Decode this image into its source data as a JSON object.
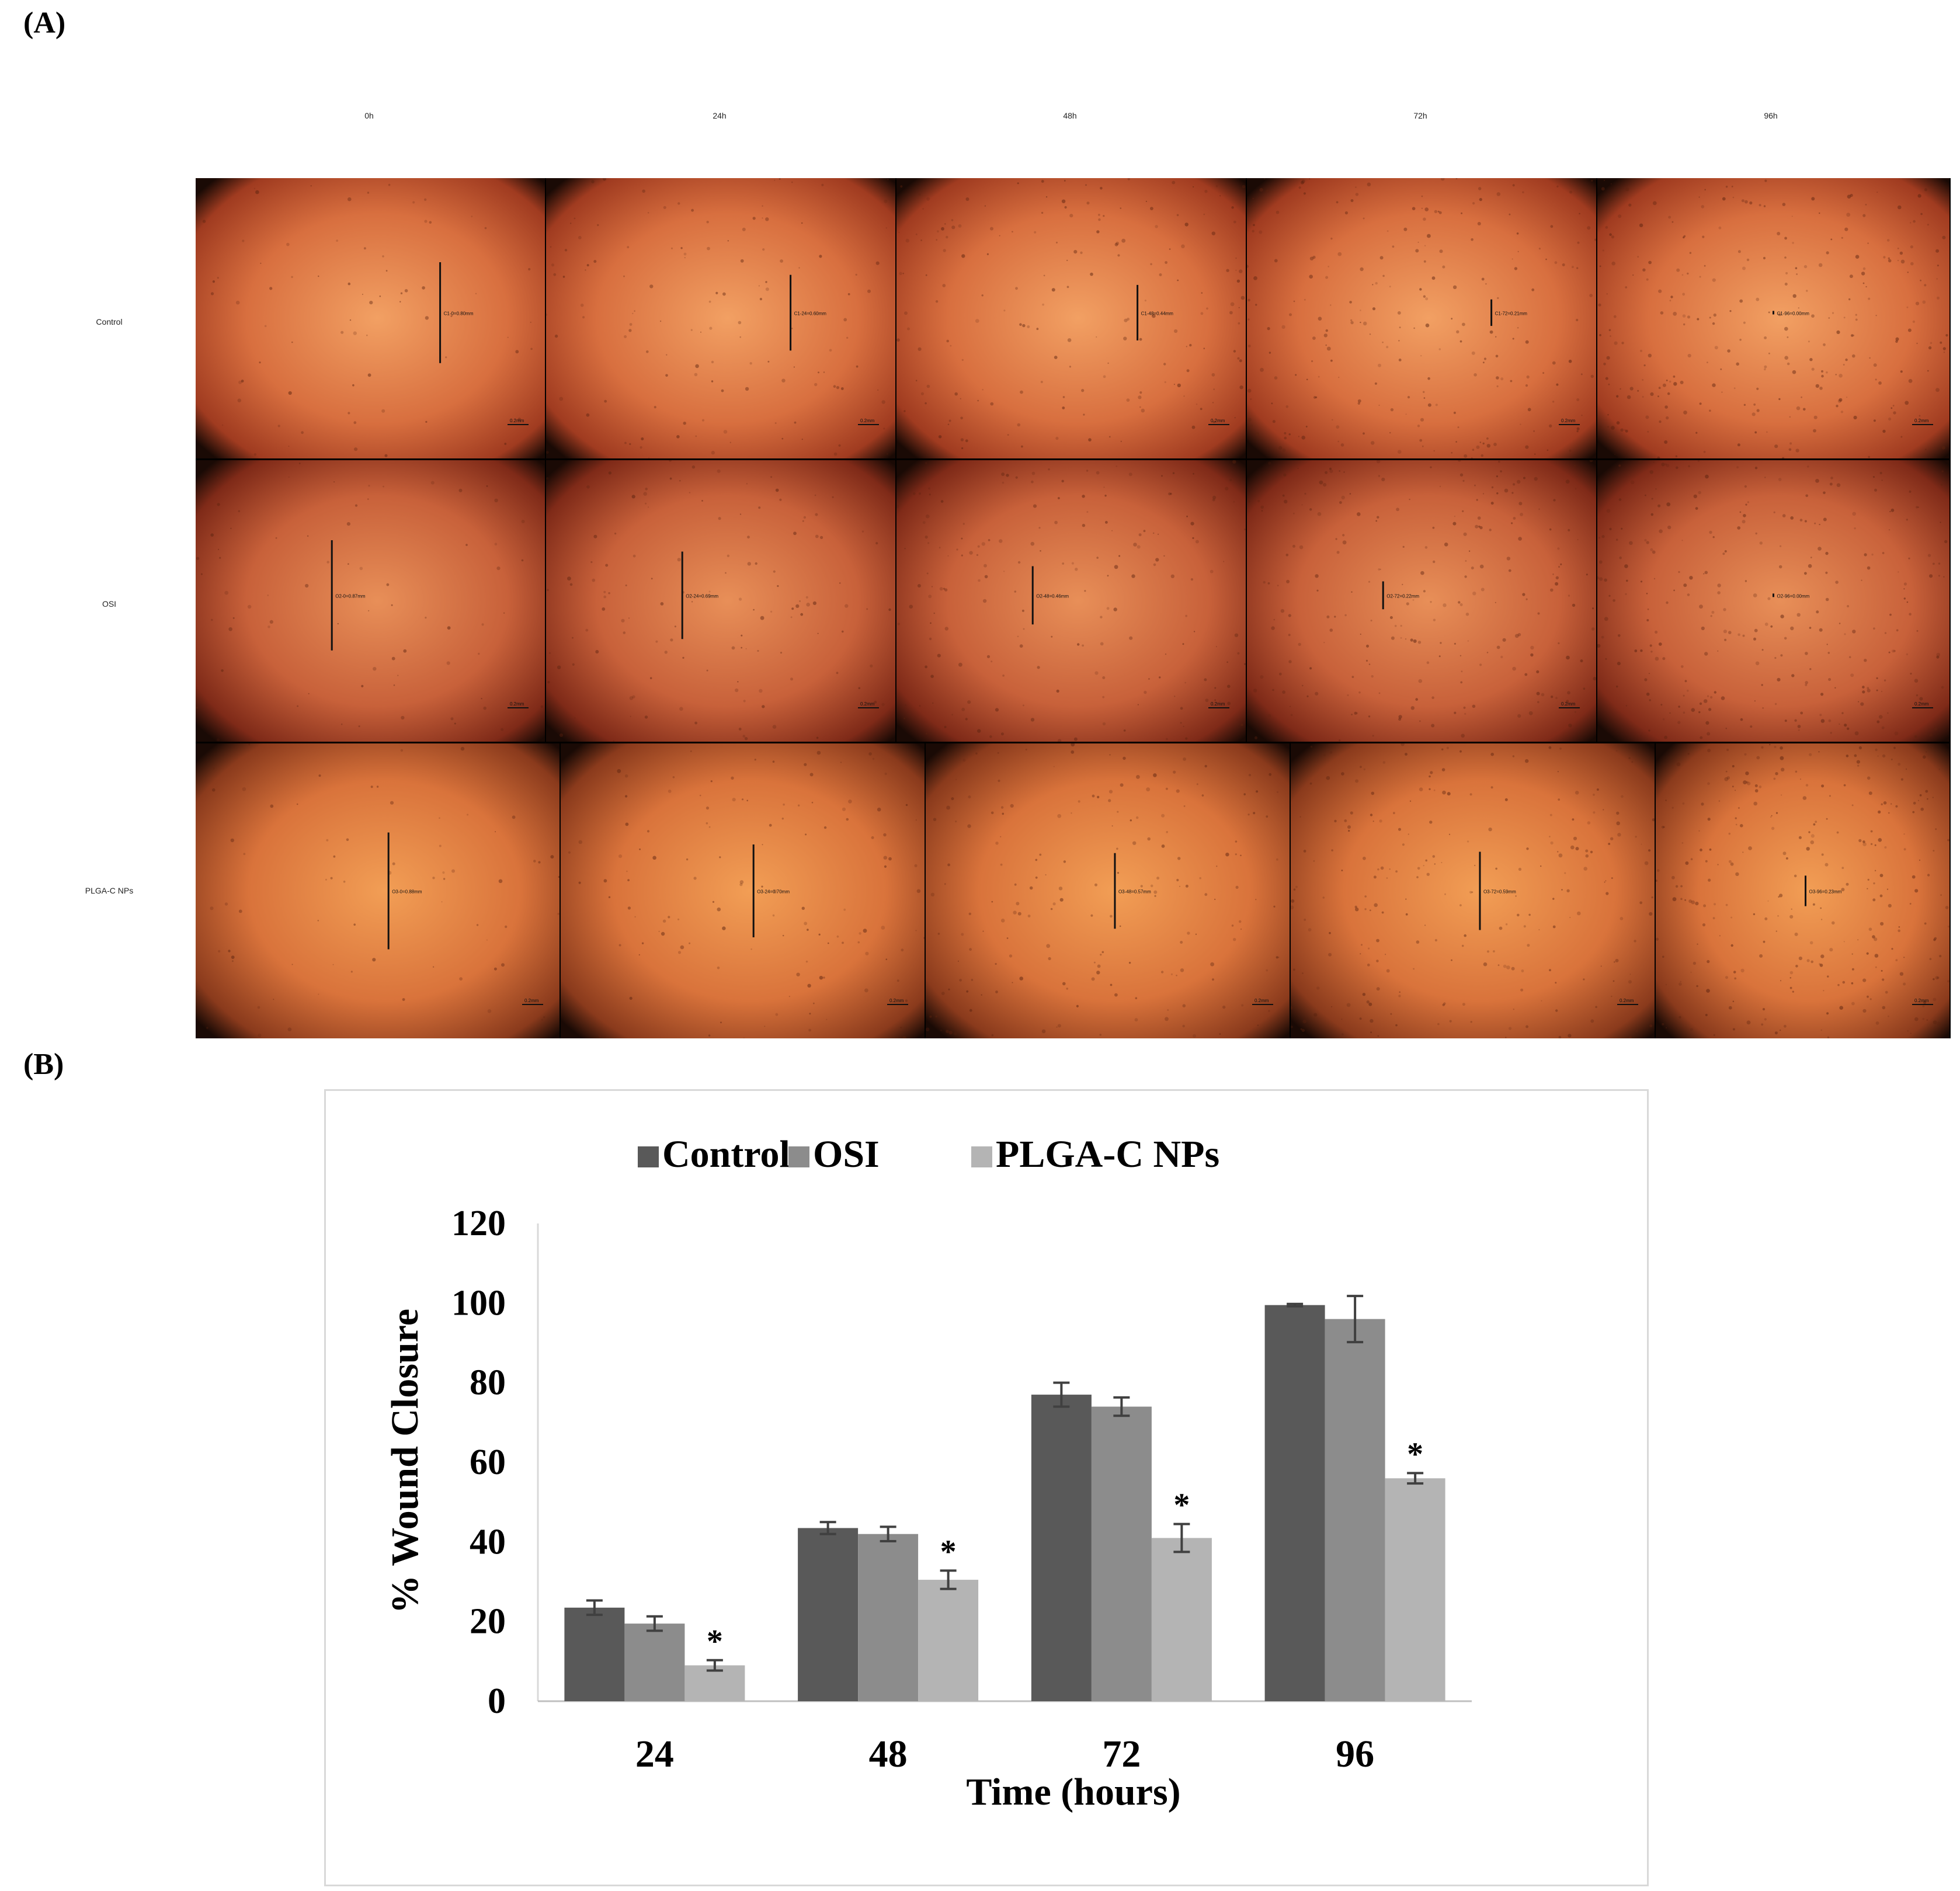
{
  "panel_a": {
    "label": "(A)",
    "columns": [
      "0h",
      "24h",
      "48h",
      "72h",
      "96h"
    ],
    "rows": [
      {
        "name": "Control",
        "cells": [
          {
            "measure": "C1-0=0.80mm",
            "gap": 0.8,
            "scale": "0.2mm"
          },
          {
            "measure": "C1-24=0.60mm",
            "gap": 0.6,
            "scale": "0.2mm"
          },
          {
            "measure": "C1-48=0.44mm",
            "gap": 0.44,
            "scale": "0.2mm"
          },
          {
            "measure": "C1-72=0.21mm",
            "gap": 0.21,
            "scale": "0.2mm"
          },
          {
            "measure": "C1-96=0.00mm",
            "gap": 0.0,
            "scale": "0.2mm"
          }
        ]
      },
      {
        "name": "OSI",
        "cells": [
          {
            "measure": "O2-0=0.87mm",
            "gap": 0.87,
            "scale": "0.2mm"
          },
          {
            "measure": "O2-24=0.69mm",
            "gap": 0.69,
            "scale": "0.2mm"
          },
          {
            "measure": "O2-48=0.46mm",
            "gap": 0.46,
            "scale": "0.2mm"
          },
          {
            "measure": "O2-72=0.22mm",
            "gap": 0.22,
            "scale": "0.2mm"
          },
          {
            "measure": "O2-96=0.00mm",
            "gap": 0.0,
            "scale": "0.2mm"
          }
        ]
      },
      {
        "name": "PLGA-C NPs",
        "cells": [
          {
            "measure": "O3-0=0.88mm",
            "gap": 0.88,
            "scale": "0.2mm"
          },
          {
            "measure": "O3-24=0.70mm",
            "gap": 0.7,
            "scale": "0.2mm"
          },
          {
            "measure": "O3-48=0.57mm",
            "gap": 0.57,
            "scale": "0.2mm"
          },
          {
            "measure": "O3-72=0.59mm",
            "gap": 0.59,
            "scale": "0.2mm"
          },
          {
            "measure": "O3-96=0.23mm",
            "gap": 0.23,
            "scale": "0.2mm"
          }
        ]
      }
    ]
  },
  "panel_b": {
    "label": "(B)"
  },
  "chart_data": {
    "type": "bar",
    "title": "",
    "xlabel": "Time (hours)",
    "ylabel": "% Wound Closure",
    "categories": [
      "24",
      "48",
      "72",
      "96"
    ],
    "ylim": [
      0,
      120
    ],
    "yticks": [
      0,
      20,
      40,
      60,
      80,
      100,
      120
    ],
    "grid": false,
    "legend_position": "top",
    "series": [
      {
        "name": "Control",
        "color": "#595959",
        "values": [
          23.5,
          43.5,
          77.0,
          99.5
        ],
        "errors": [
          1.8,
          1.5,
          3.0,
          0.3
        ]
      },
      {
        "name": "OSI",
        "color": "#8c8c8c",
        "values": [
          19.5,
          42.0,
          74.0,
          96.0
        ],
        "errors": [
          1.8,
          1.8,
          2.3,
          5.8
        ]
      },
      {
        "name": "PLGA-C NPs",
        "color": "#b4b4b4",
        "values": [
          9.0,
          30.5,
          41.0,
          56.0
        ],
        "errors": [
          1.3,
          2.3,
          3.5,
          1.3
        ]
      }
    ],
    "annotations": [
      "*",
      "*",
      "*",
      "*"
    ]
  }
}
